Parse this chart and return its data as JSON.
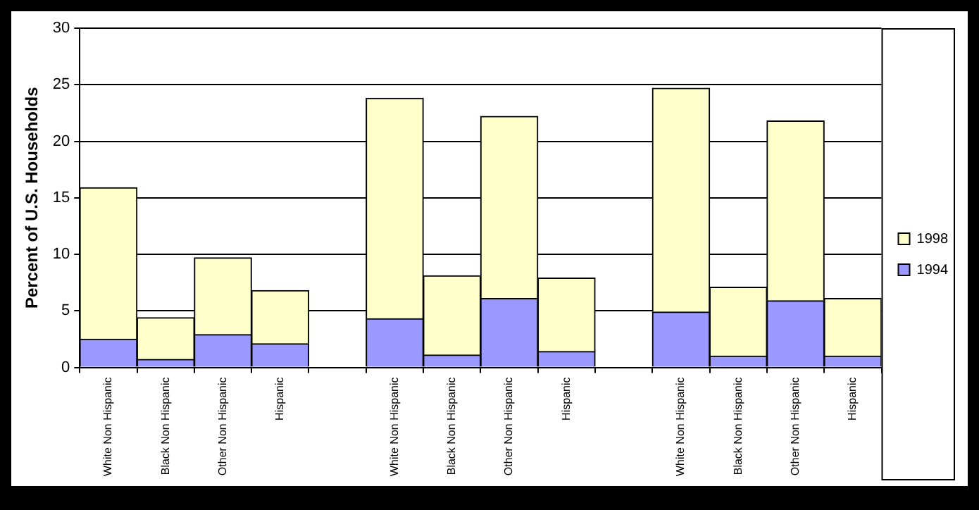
{
  "chart_data": {
    "type": "bar",
    "ylabel": "Percent of U.S. Households",
    "categories": [
      "White Non Hispanic",
      "Black Non Hispanic",
      "Other Non Hispanic",
      "Hispanic",
      null,
      "White Non Hispanic",
      "Black Non Hispanic",
      "Other Non Hispanic",
      "Hispanic",
      null,
      "White Non Hispanic",
      "Black Non Hispanic",
      "Other Non Hispanic",
      "Hispanic"
    ],
    "series": [
      {
        "name": "1994",
        "color": "#9999ff",
        "values": [
          2.5,
          0.7,
          2.9,
          2.1,
          null,
          4.3,
          1.1,
          6.1,
          1.4,
          null,
          4.9,
          1.0,
          5.9,
          1.0
        ]
      },
      {
        "name": "1998",
        "color": "#ffffcc",
        "values": [
          13.4,
          3.7,
          6.8,
          4.7,
          null,
          19.5,
          7.0,
          16.1,
          6.5,
          null,
          19.8,
          6.1,
          15.9,
          5.1
        ]
      }
    ],
    "stacked": true,
    "ylim": [
      0,
      30
    ],
    "yticks": [
      0,
      5,
      10,
      15,
      20,
      25,
      30
    ],
    "grid": "y",
    "legend": "right"
  }
}
